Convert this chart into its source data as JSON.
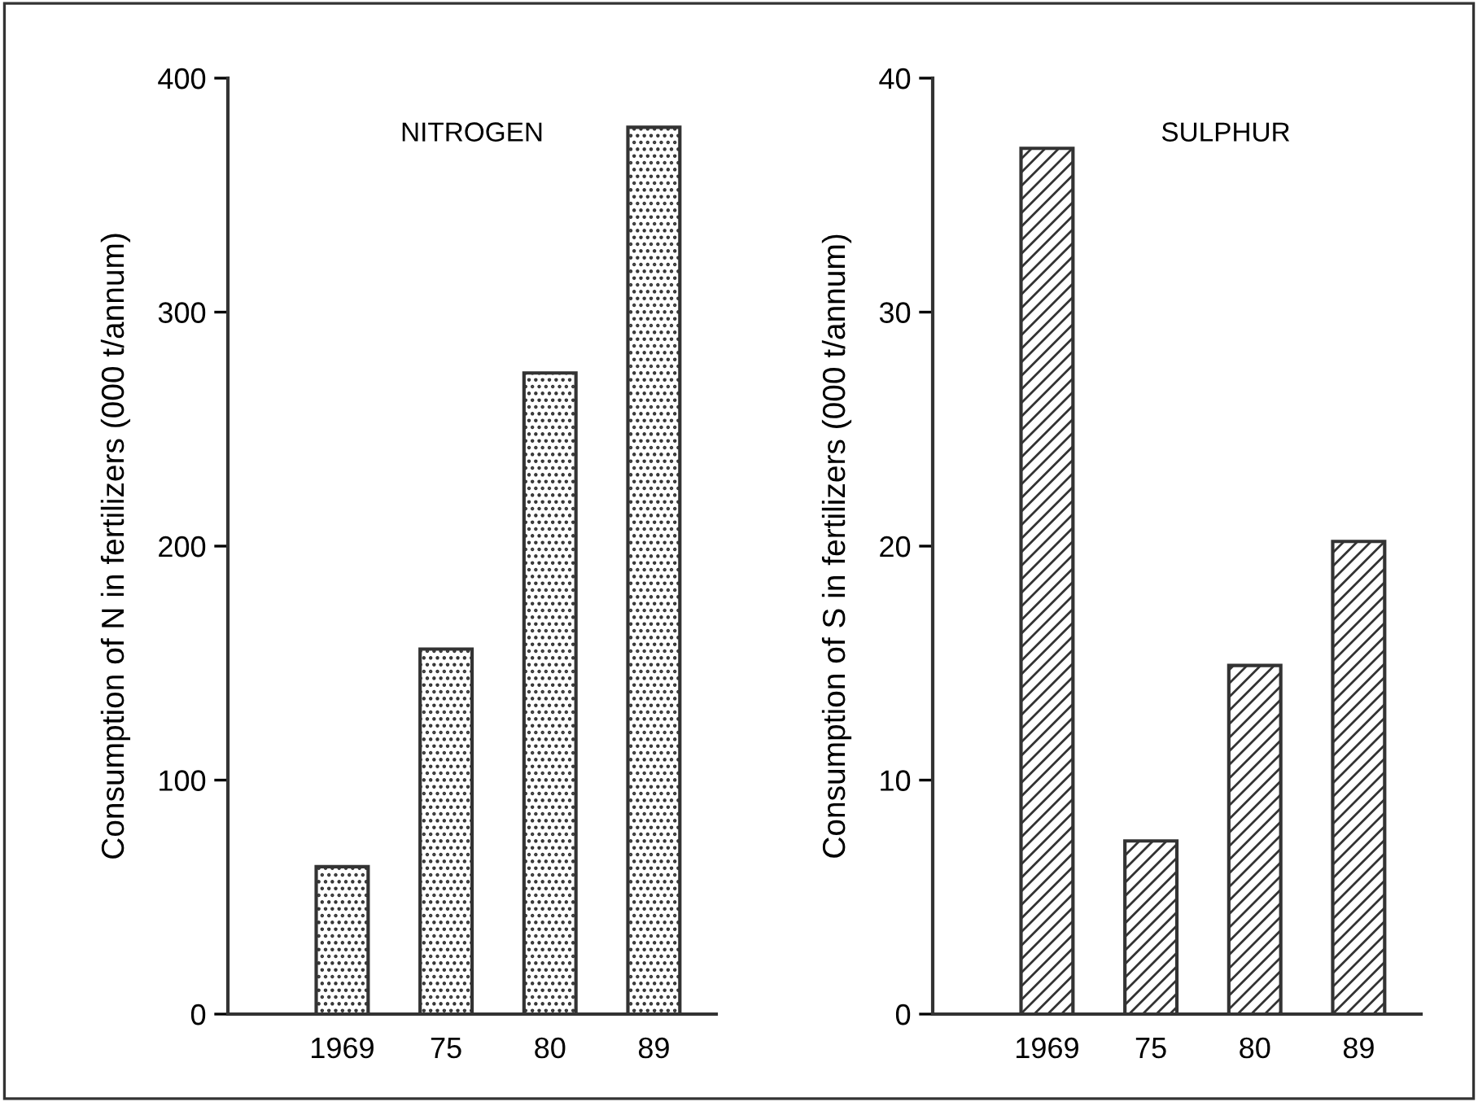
{
  "chart_data": [
    {
      "type": "bar",
      "title": "NITROGEN",
      "ylabel": "Consumption of N in fertilizers (000 t/annum)",
      "categories": [
        "1969",
        "75",
        "80",
        "89"
      ],
      "values": [
        63,
        156,
        274,
        379
      ],
      "color": "#333333",
      "ylim": [
        0,
        400
      ],
      "yticks": [
        0,
        100,
        200,
        300,
        400
      ],
      "grid": false
    },
    {
      "type": "bar",
      "title": "SULPHUR",
      "ylabel": "Consumption of S in fertilizers (000 t/annum)",
      "categories": [
        "1969",
        "75",
        "80",
        "89"
      ],
      "values": [
        37,
        7.4,
        14.9,
        20.2
      ],
      "color": "#333333",
      "ylim": [
        0,
        40
      ],
      "yticks": [
        0,
        10,
        20,
        30,
        40
      ],
      "grid": false
    }
  ]
}
